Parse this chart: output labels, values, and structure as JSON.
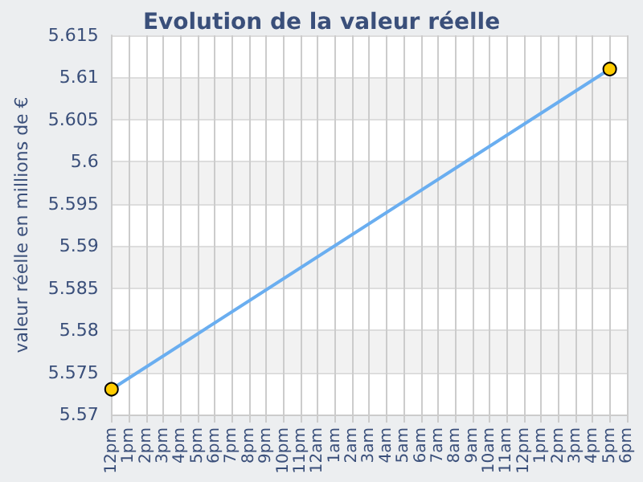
{
  "chart_data": {
    "type": "line",
    "title": "Evolution de la valeur réelle",
    "ylabel": "valeur réelle en millions de €",
    "categories": [
      "12pm",
      "1pm",
      "2pm",
      "3pm",
      "4pm",
      "5pm",
      "6pm",
      "7pm",
      "8pm",
      "9pm",
      "10pm",
      "11pm",
      "12am",
      "1am",
      "2am",
      "3am",
      "4am",
      "5am",
      "6am",
      "7am",
      "8am",
      "9am",
      "10am",
      "11am",
      "12pm",
      "1pm",
      "2pm",
      "3pm",
      "4pm",
      "5pm",
      "6pm"
    ],
    "series": [
      {
        "color": "#6aaef0",
        "colors": [
          "#ffcc00",
          null,
          null,
          null,
          null,
          null,
          null,
          null,
          null,
          null,
          null,
          null,
          null,
          null,
          null,
          null,
          null,
          null,
          null,
          null,
          null,
          null,
          null,
          null,
          null,
          null,
          null,
          null,
          null,
          "#ffcc00",
          null
        ],
        "values": [
          5.573,
          null,
          null,
          null,
          null,
          null,
          null,
          null,
          null,
          null,
          null,
          null,
          null,
          null,
          null,
          null,
          null,
          null,
          null,
          null,
          null,
          null,
          null,
          null,
          null,
          null,
          null,
          null,
          null,
          5.611,
          null
        ]
      }
    ],
    "ylim": [
      5.57,
      5.615
    ],
    "yticks": [
      5.57,
      5.575,
      5.58,
      5.585,
      5.59,
      5.595,
      5.6,
      5.605,
      5.61,
      5.615
    ],
    "grid": true,
    "marker": "circle",
    "line_style": "solid"
  }
}
